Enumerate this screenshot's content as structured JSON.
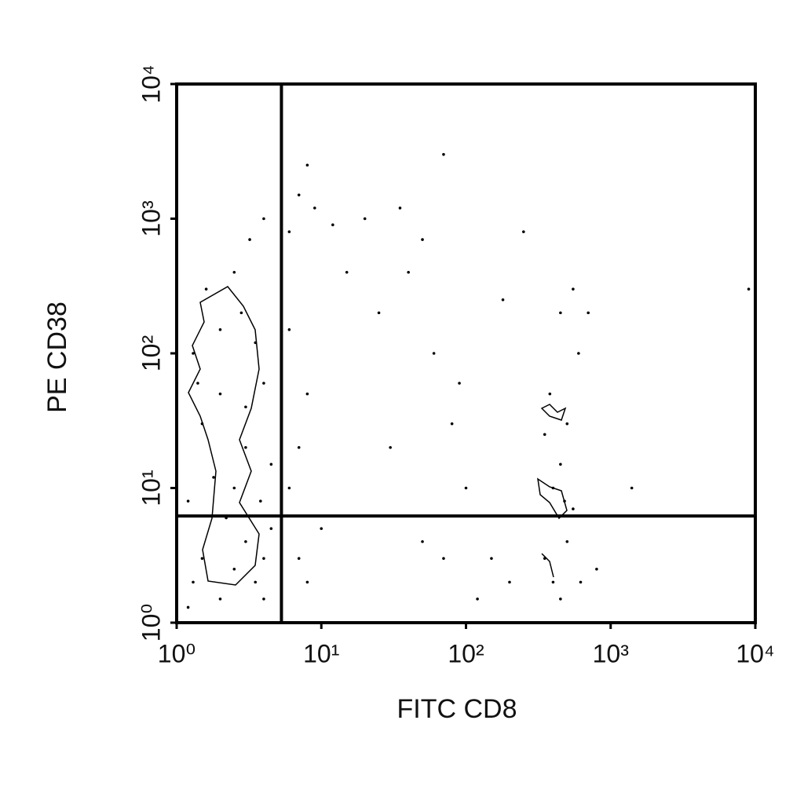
{
  "chart_data": {
    "type": "scatter",
    "x_label": "FITC CD8",
    "y_label": "PE CD38",
    "log_x": true,
    "log_y": true,
    "xlim": [
      1,
      10000
    ],
    "ylim": [
      1,
      10000
    ],
    "xticks": [
      {
        "value": 1,
        "label": "10⁰"
      },
      {
        "value": 10,
        "label": "10¹"
      },
      {
        "value": 100,
        "label": "10²"
      },
      {
        "value": 1000,
        "label": "10³"
      },
      {
        "value": 10000,
        "label": "10⁴"
      }
    ],
    "yticks": [
      {
        "value": 1,
        "label": "10⁰"
      },
      {
        "value": 10,
        "label": "10¹"
      },
      {
        "value": 100,
        "label": "10²"
      },
      {
        "value": 1000,
        "label": "10³"
      },
      {
        "value": 10000,
        "label": "10⁴"
      }
    ],
    "gate_x": 5.3,
    "gate_y": 6.2,
    "color": "#000000",
    "x": [
      1.3,
      1.5,
      2,
      2.5,
      3,
      3.5,
      4,
      1.2,
      1.8,
      2.5,
      3,
      1.5,
      2,
      3,
      4,
      1.3,
      2,
      2.8,
      3.5,
      1.6,
      2.5,
      3.2,
      4,
      1.4,
      4.5,
      4.5,
      4,
      1.2,
      2.2,
      3.8,
      7,
      8,
      6,
      9,
      12,
      15,
      7,
      8,
      6,
      10,
      7,
      8,
      6,
      20,
      35,
      50,
      70,
      40,
      25,
      60,
      80,
      30,
      100,
      150,
      120,
      200,
      250,
      180,
      90,
      50,
      70,
      350,
      400,
      450,
      500,
      550,
      400,
      450,
      500,
      380,
      600,
      450,
      550,
      700,
      350,
      480,
      620,
      800,
      1400,
      9000
    ],
    "y": [
      2,
      3,
      1.5,
      2.5,
      4,
      2,
      3,
      8,
      12,
      10,
      20,
      30,
      50,
      40,
      60,
      100,
      150,
      200,
      120,
      300,
      400,
      700,
      1000,
      60,
      15,
      5,
      1.5,
      1.3,
      6,
      8,
      1500,
      2500,
      800,
      1200,
      900,
      400,
      3,
      2,
      10,
      5,
      20,
      50,
      150,
      1000,
      1200,
      700,
      3000,
      400,
      200,
      100,
      30,
      20,
      10,
      3,
      1.5,
      2,
      800,
      250,
      60,
      4,
      3,
      3,
      2,
      1.5,
      4,
      7,
      10,
      15,
      30,
      50,
      100,
      200,
      300,
      200,
      25,
      8,
      2,
      2.5,
      10,
      300
    ]
  }
}
